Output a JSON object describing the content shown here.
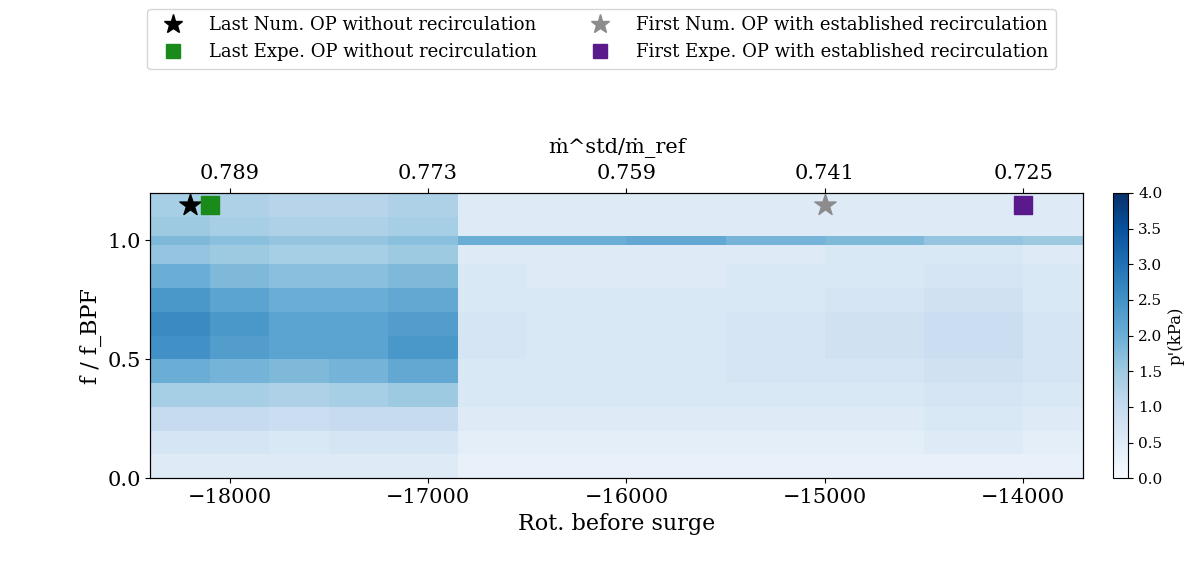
{
  "chart_data": {
    "type": "heatmap",
    "x_label": "Rot. before surge",
    "y_label": "f / f_BPF",
    "x2_label": "ṁ^std/ṁ_ref",
    "xlim": [
      -18400,
      -13700
    ],
    "xticks": [
      {
        "value": -18000,
        "label": "−18000"
      },
      {
        "value": -17000,
        "label": "−17000"
      },
      {
        "value": -16000,
        "label": "−16000"
      },
      {
        "value": -15000,
        "label": "−15000"
      },
      {
        "value": -14000,
        "label": "−14000"
      }
    ],
    "x2ticks": [
      {
        "value": -18000,
        "label": "0.789"
      },
      {
        "value": -17000,
        "label": "0.773"
      },
      {
        "value": -16000,
        "label": "0.759"
      },
      {
        "value": -15000,
        "label": "0.741"
      },
      {
        "value": -14000,
        "label": "0.725"
      }
    ],
    "ylim": [
      0,
      1.2
    ],
    "yticks": [
      {
        "value": 0,
        "label": "0.0"
      },
      {
        "value": 0.5,
        "label": "0.5"
      },
      {
        "value": 1,
        "label": "1.0"
      }
    ],
    "x_edges": [
      -18400,
      -18100,
      -17800,
      -17500,
      -17200,
      -16850,
      -16500,
      -16000,
      -15500,
      -15000,
      -14500,
      -14000,
      -13700
    ],
    "y_edges": [
      0,
      0.1,
      0.2,
      0.3,
      0.4,
      0.5,
      0.6,
      0.7,
      0.8,
      0.9,
      0.98,
      1.02,
      1.1,
      1.2
    ],
    "cells": [
      [
        0.5,
        0.5,
        0.5,
        0.5,
        0.5,
        0.3,
        0.3,
        0.3,
        0.3,
        0.3,
        0.3,
        0.3
      ],
      [
        0.7,
        0.7,
        0.6,
        0.7,
        0.7,
        0.4,
        0.4,
        0.4,
        0.4,
        0.4,
        0.5,
        0.4
      ],
      [
        1.0,
        1.0,
        0.9,
        1.0,
        1.0,
        0.5,
        0.5,
        0.5,
        0.5,
        0.5,
        0.6,
        0.5
      ],
      [
        1.4,
        1.4,
        1.3,
        1.4,
        1.5,
        0.6,
        0.6,
        0.6,
        0.6,
        0.6,
        0.7,
        0.6
      ],
      [
        2.0,
        1.9,
        1.8,
        1.9,
        2.1,
        0.6,
        0.6,
        0.6,
        0.7,
        0.7,
        0.8,
        0.7
      ],
      [
        2.5,
        2.3,
        2.2,
        2.2,
        2.4,
        0.7,
        0.6,
        0.6,
        0.7,
        0.8,
        0.9,
        0.7
      ],
      [
        2.6,
        2.4,
        2.2,
        2.2,
        2.3,
        0.7,
        0.6,
        0.6,
        0.7,
        0.8,
        0.9,
        0.7
      ],
      [
        2.4,
        2.2,
        2.0,
        2.0,
        2.1,
        0.6,
        0.6,
        0.6,
        0.6,
        0.7,
        0.8,
        0.6
      ],
      [
        2.0,
        1.8,
        1.7,
        1.7,
        1.8,
        0.6,
        0.5,
        0.5,
        0.6,
        0.6,
        0.7,
        0.6
      ],
      [
        1.6,
        1.5,
        1.4,
        1.4,
        1.5,
        0.5,
        0.5,
        0.5,
        0.5,
        0.6,
        0.6,
        0.5
      ],
      [
        1.8,
        1.7,
        1.6,
        1.6,
        1.7,
        2.0,
        2.0,
        2.1,
        1.9,
        1.8,
        1.6,
        1.5
      ],
      [
        1.5,
        1.4,
        1.3,
        1.3,
        1.4,
        0.5,
        0.5,
        0.5,
        0.5,
        0.5,
        0.5,
        0.5
      ],
      [
        1.4,
        1.3,
        1.2,
        1.2,
        1.3,
        0.5,
        0.5,
        0.5,
        0.5,
        0.5,
        0.5,
        0.5
      ]
    ],
    "colorbar": {
      "label": "p'(kPa)",
      "lim": [
        0,
        4
      ],
      "ticks": [
        {
          "value": 0,
          "label": "0.0"
        },
        {
          "value": 0.5,
          "label": "0.5"
        },
        {
          "value": 1,
          "label": "1.0"
        },
        {
          "value": 1.5,
          "label": "1.5"
        },
        {
          "value": 2,
          "label": "2.0"
        },
        {
          "value": 2.5,
          "label": "2.5"
        },
        {
          "value": 3,
          "label": "3.0"
        },
        {
          "value": 3.5,
          "label": "3.5"
        },
        {
          "value": 4,
          "label": "4.0"
        }
      ]
    },
    "legend": "upper center",
    "series": [
      {
        "name": "Last Num. OP without recirculation",
        "color": "#000000",
        "marker": "star",
        "x": [
          -18200
        ],
        "values": [
          1.15
        ]
      },
      {
        "name": "Last Expe. OP without recirculation",
        "color": "#1a8a1a",
        "marker": "square",
        "x": [
          -18100
        ],
        "values": [
          1.15
        ]
      },
      {
        "name": "First Num. OP with established recirculation",
        "color": "#8c8c8c",
        "marker": "star",
        "x": [
          -15000
        ],
        "values": [
          1.15
        ]
      },
      {
        "name": "First Expe. OP with established recirculation",
        "color": "#5b1a8c",
        "marker": "square",
        "x": [
          -14000
        ],
        "values": [
          1.15
        ]
      }
    ]
  }
}
